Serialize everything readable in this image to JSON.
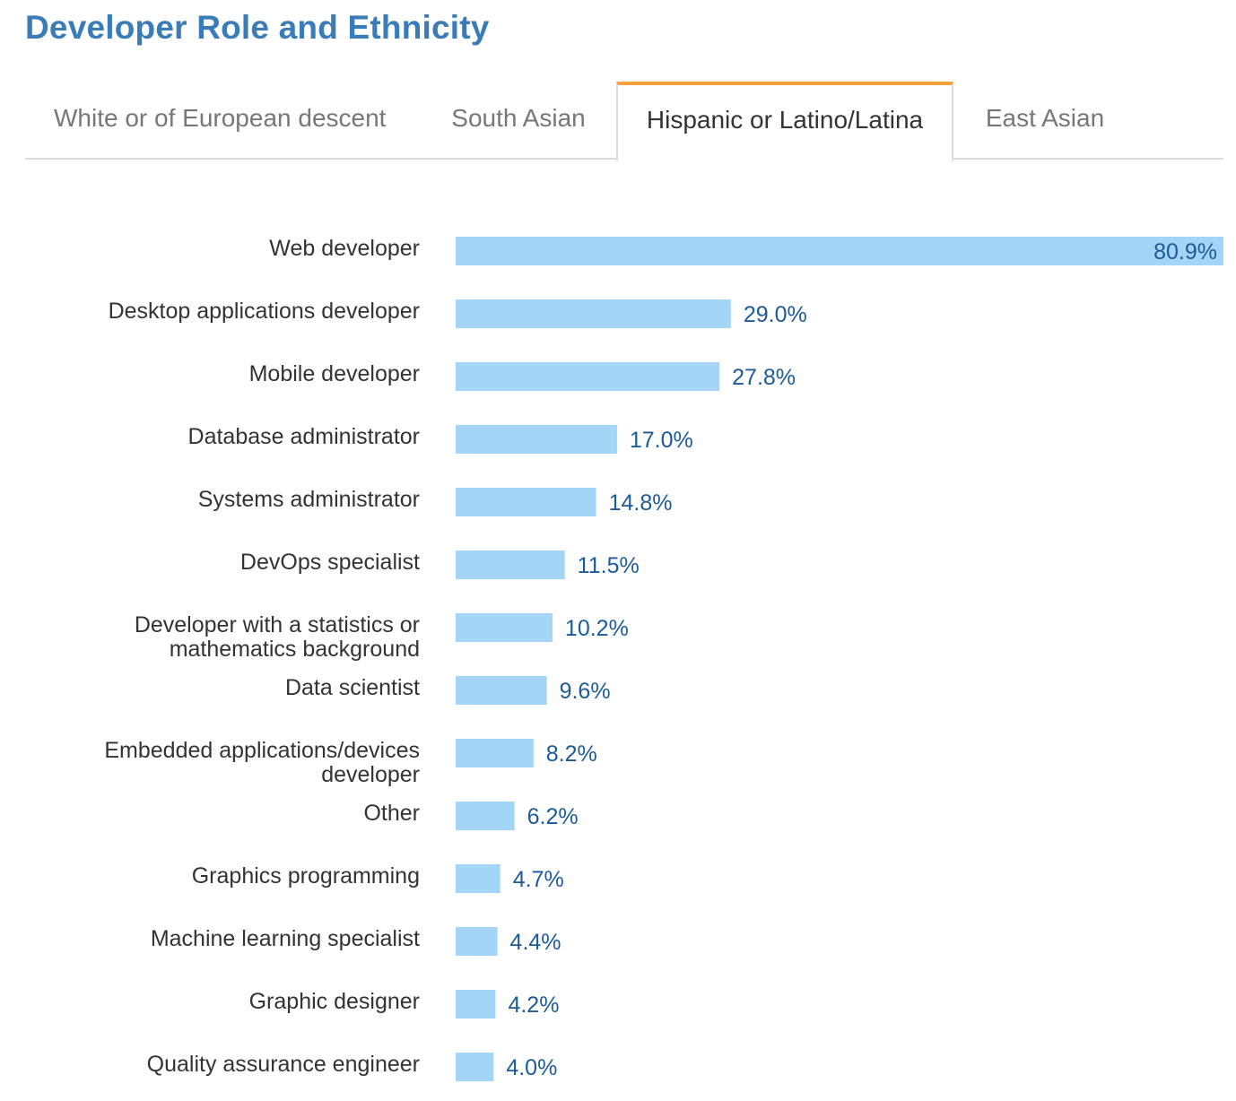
{
  "title": "Developer Role and Ethnicity",
  "tabs": [
    {
      "label": "White or of European descent",
      "active": false
    },
    {
      "label": "South Asian",
      "active": false
    },
    {
      "label": "Hispanic or Latino/Latina",
      "active": true
    },
    {
      "label": "East Asian",
      "active": false
    }
  ],
  "colors": {
    "title": "#3a7cb8",
    "active_tab_accent": "#f7a13b",
    "bar": "#a3d5f7",
    "value_label": "#1d5a96",
    "category_label": "#333333"
  },
  "chart_data": {
    "type": "bar",
    "orientation": "horizontal",
    "title": "Developer Role and Ethnicity",
    "series_name": "Hispanic or Latino/Latina",
    "categories": [
      [
        "Web developer"
      ],
      [
        "Desktop applications developer"
      ],
      [
        "Mobile developer"
      ],
      [
        "Database administrator"
      ],
      [
        "Systems administrator"
      ],
      [
        "DevOps specialist"
      ],
      [
        "Developer with a statistics or",
        "mathematics background"
      ],
      [
        "Data scientist"
      ],
      [
        "Embedded applications/devices",
        "developer"
      ],
      [
        "Other"
      ],
      [
        "Graphics programming"
      ],
      [
        "Machine learning specialist"
      ],
      [
        "Graphic designer"
      ],
      [
        "Quality assurance engineer"
      ]
    ],
    "values": [
      80.9,
      29.0,
      27.8,
      17.0,
      14.8,
      11.5,
      10.2,
      9.6,
      8.2,
      6.2,
      4.7,
      4.4,
      4.2,
      4.0
    ],
    "value_labels": [
      "80.9%",
      "29.0%",
      "27.8%",
      "17.0%",
      "14.8%",
      "11.5%",
      "10.2%",
      "9.6%",
      "8.2%",
      "6.2%",
      "4.7%",
      "4.4%",
      "4.2%",
      "4.0%"
    ],
    "unit": "%",
    "xlim": [
      0,
      80.9
    ],
    "xlabel": "",
    "ylabel": "",
    "grid": false
  }
}
